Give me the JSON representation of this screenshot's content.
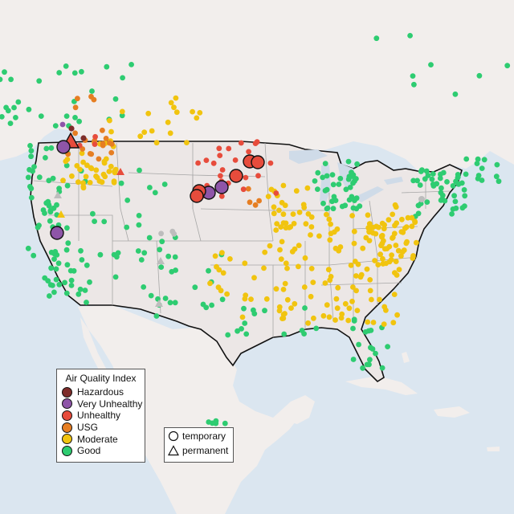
{
  "legend": {
    "title": "Air Quality Index",
    "categories": [
      {
        "label": "Hazardous",
        "color": "#7e2d2a"
      },
      {
        "label": "Very Unhealthy",
        "color": "#8e55a8"
      },
      {
        "label": "Unhealthy",
        "color": "#e74c3c"
      },
      {
        "label": "USG",
        "color": "#e67e22"
      },
      {
        "label": "Moderate",
        "color": "#f1c40f"
      },
      {
        "label": "Good",
        "color": "#2ecc71"
      }
    ]
  },
  "monitor_types": [
    {
      "label": "temporary",
      "shape": "circle-icon"
    },
    {
      "label": "permanent",
      "shape": "triangle-icon"
    }
  ],
  "colors": {
    "ocean": "#dbe6f0",
    "land": "#f2eeec",
    "us_land": "#ece7e6",
    "lakes": "#cfdbe8",
    "border": "#111111",
    "state_lines": "#a7a7a7",
    "no_data": "#bdbdbd"
  }
}
